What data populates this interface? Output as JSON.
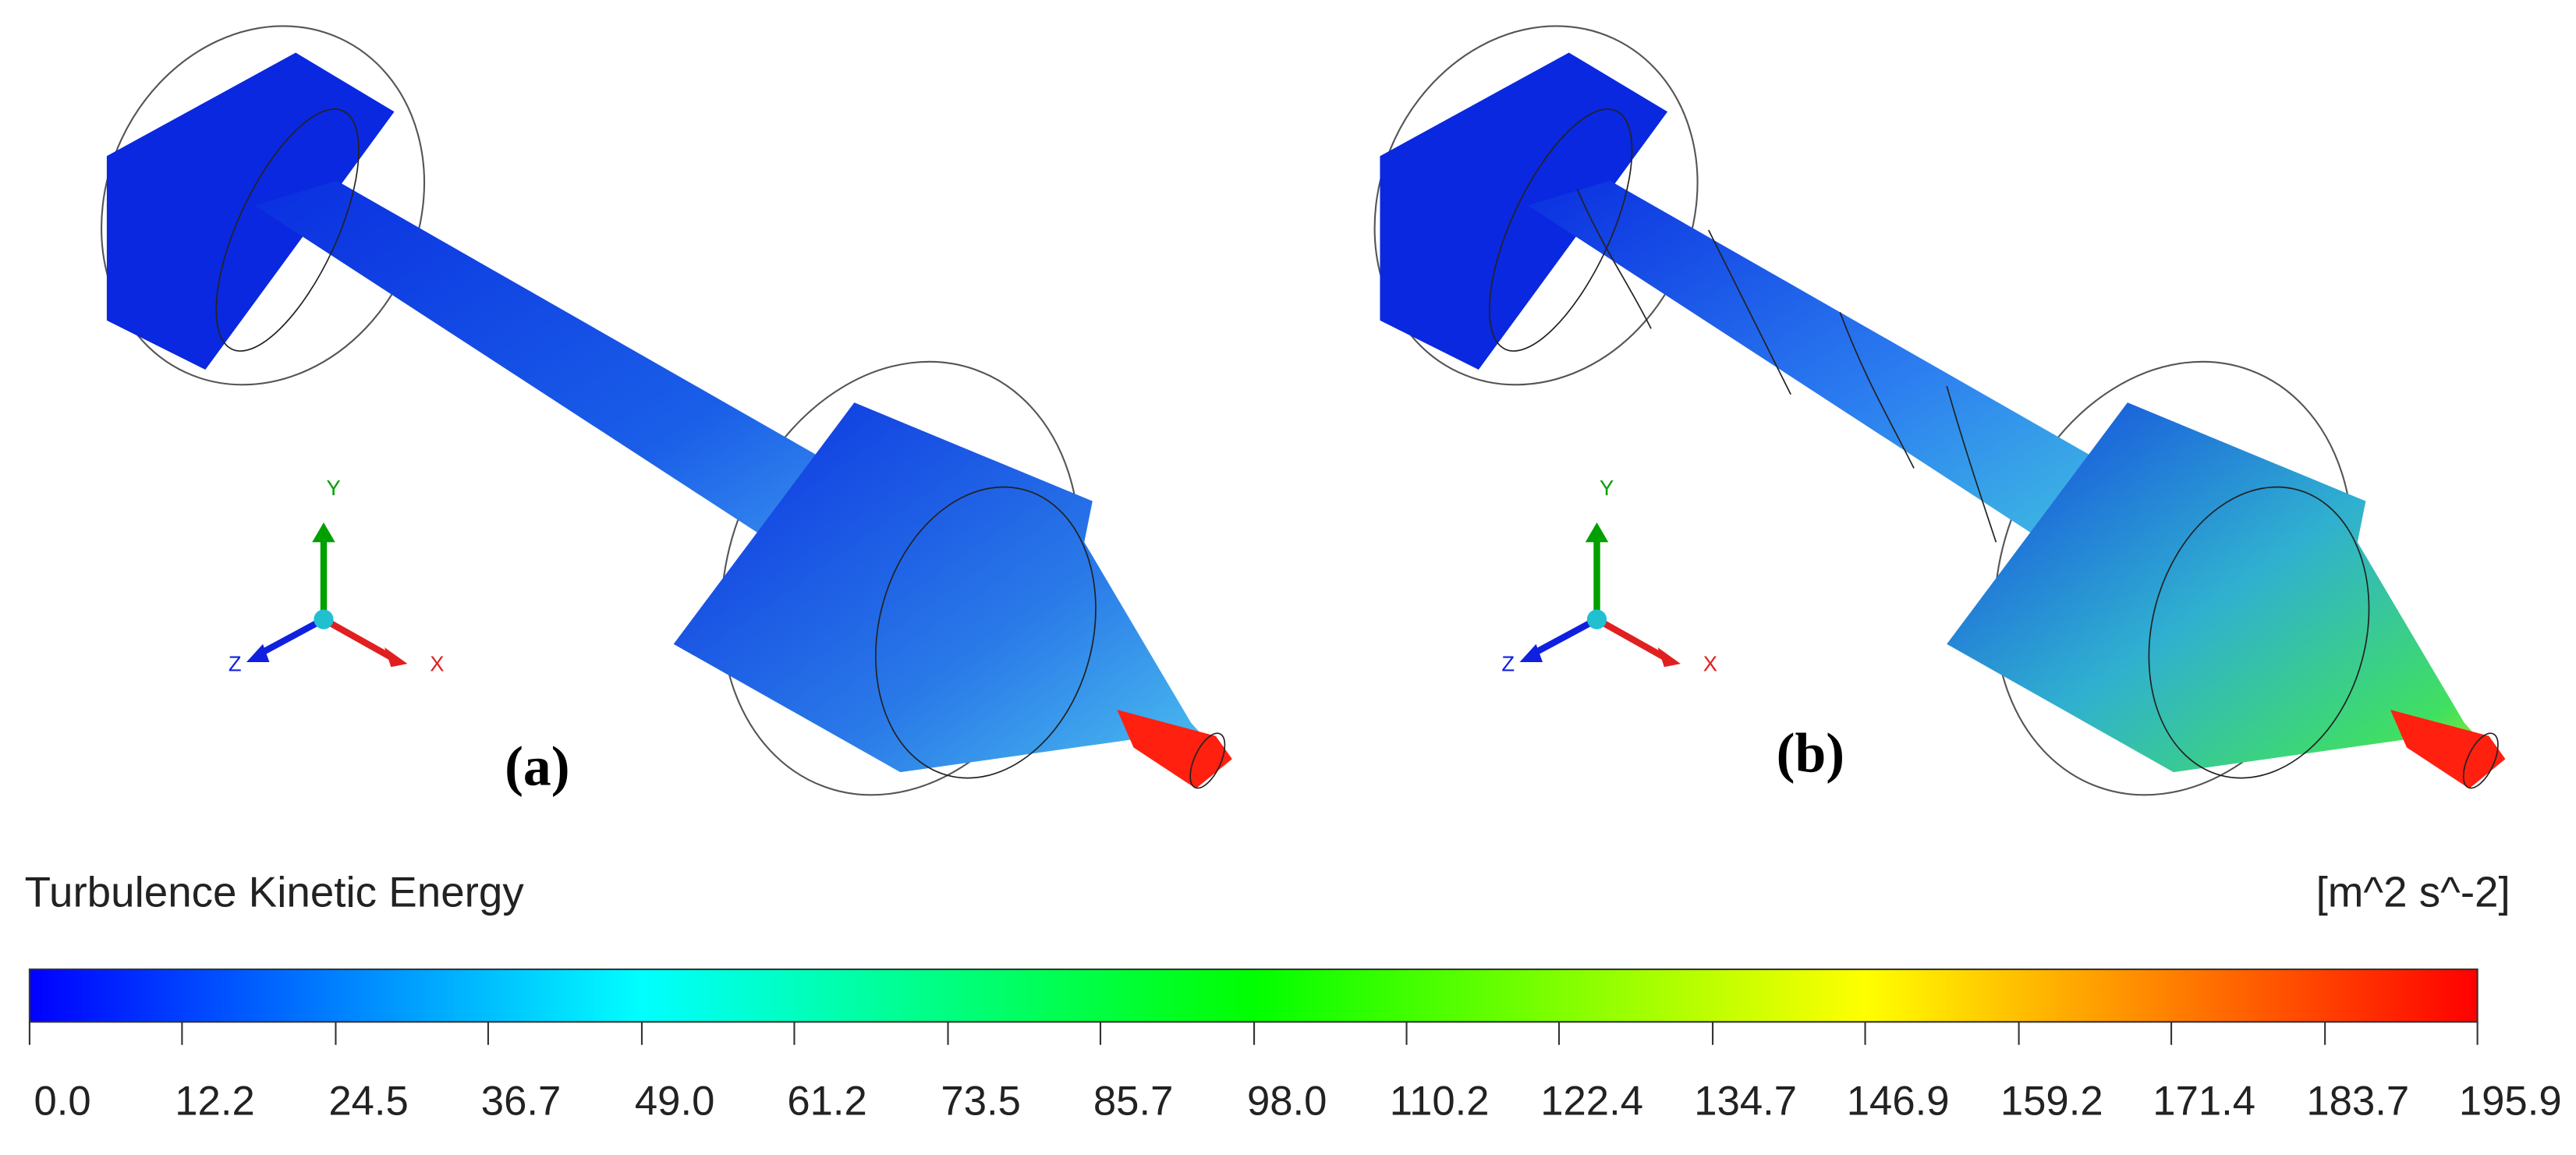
{
  "panels": [
    {
      "label": "(a)"
    },
    {
      "label": "(b)"
    }
  ],
  "triad": {
    "x": "X",
    "y": "Y",
    "z": "Z"
  },
  "colorbar": {
    "title": "Turbulence Kinetic Energy",
    "unit": "[m^2 s^-2]",
    "lim": [
      0,
      195.9
    ],
    "ticks": [
      {
        "value": 0,
        "label": "0.0"
      },
      12.2,
      24.5,
      36.7,
      {
        "value": 49,
        "label": "49.0"
      },
      61.2,
      73.5,
      85.7,
      {
        "value": 98,
        "label": "98.0"
      },
      110.2,
      122.4,
      134.7,
      146.9,
      159.2,
      171.4,
      183.7,
      195.9
    ]
  }
}
